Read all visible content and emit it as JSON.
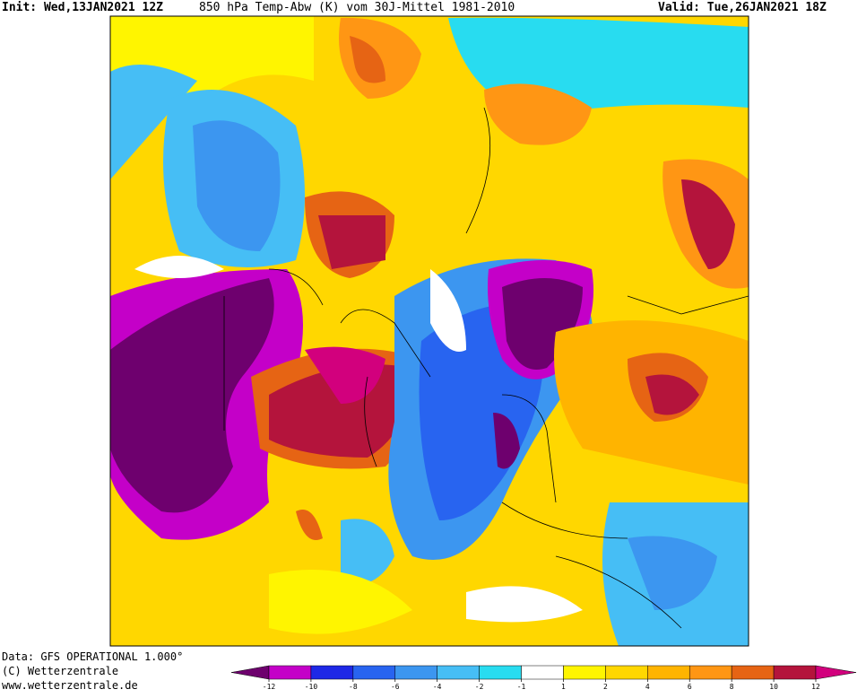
{
  "header": {
    "init": "Init: Wed,13JAN2021 12Z",
    "title": "850 hPa Temp-Abw (K) vom 30J-Mittel 1981-2010",
    "valid": "Valid: Tue,26JAN2021 18Z"
  },
  "footer": {
    "data": "Data: GFS OPERATIONAL 1.000°",
    "copyright": "(C) Wetterzentrale",
    "url": "www.wetterzentrale.de"
  },
  "colorbar": {
    "ticks": [
      -12,
      -10,
      -8,
      -6,
      -4,
      -2,
      -1,
      1,
      2,
      4,
      6,
      8,
      10,
      12
    ],
    "colors": [
      "#6e006e",
      "#c400c8",
      "#1e28e6",
      "#2864f0",
      "#3c96f0",
      "#46bef5",
      "#28dcf0",
      "#ffffff",
      "#fff500",
      "#ffd700",
      "#ffb400",
      "#ff9614",
      "#e66414",
      "#b4143c",
      "#d2007d"
    ]
  }
}
